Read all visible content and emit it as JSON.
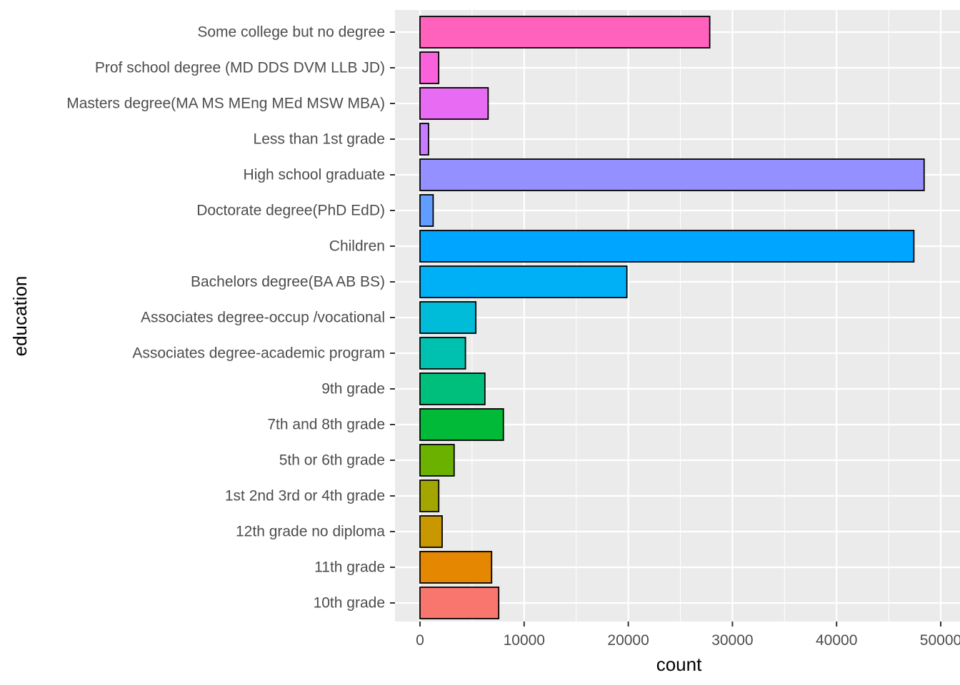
{
  "chart_data": {
    "type": "bar",
    "orientation": "horizontal",
    "xlabel": "count",
    "ylabel": "education",
    "xlim": [
      -2400,
      50000
    ],
    "x_ticks": [
      0,
      10000,
      20000,
      30000,
      40000,
      50000
    ],
    "x_tick_labels": [
      "0",
      "10000",
      "20000",
      "30000",
      "40000",
      "50000"
    ],
    "grid": true,
    "legend": "none",
    "categories": [
      "10th grade",
      "11th grade",
      "12th grade no diploma",
      "1st 2nd 3rd or 4th grade",
      "5th or 6th grade",
      "7th and 8th grade",
      "9th grade",
      "Associates degree-academic program",
      "Associates degree-occup /vocational",
      "Bachelors degree(BA AB BS)",
      "Children",
      "Doctorate degree(PhD EdD)",
      "High school graduate",
      "Less than 1st grade",
      "Masters degree(MA MS MEng MEd MSW MBA)",
      "Prof school degree (MD DDS DVM LLB JD)",
      "Some college but no degree"
    ],
    "values": [
      7557,
      6876,
      2126,
      1799,
      3277,
      8007,
      6230,
      4363,
      5358,
      19865,
      47422,
      1263,
      48407,
      819,
      6541,
      1793,
      27820
    ],
    "colors": [
      "#F8766D",
      "#E58700",
      "#C99800",
      "#A3A500",
      "#6BB100",
      "#00BA38",
      "#00BF7D",
      "#00C0AF",
      "#00BCD8",
      "#00B0F6",
      "#00A5FF",
      "#619CFF",
      "#9590FF",
      "#C77CFF",
      "#E76BF3",
      "#FA62DB",
      "#FF62BC"
    ],
    "panel_color": "#EBEBEB",
    "grid_color": "#FFFFFF",
    "bar_outline_color": "#000000"
  }
}
